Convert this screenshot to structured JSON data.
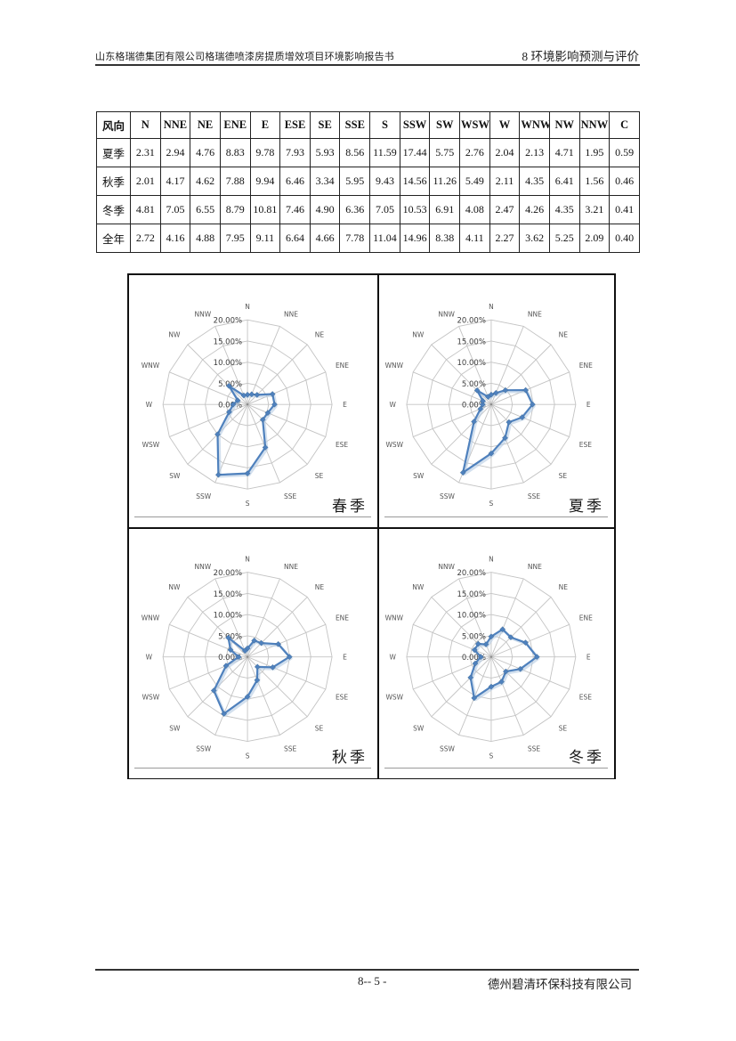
{
  "header": {
    "left_title": "山东格瑞德集团有限公司格瑞德喷漆房提质增效项目环境影响报告书",
    "right_section": "8 环境影响预测与评价"
  },
  "footer": {
    "page_number": "8-- 5 -",
    "company": "德州碧清环保科技有限公司"
  },
  "table": {
    "header": [
      "风向",
      "N",
      "NNE",
      "NE",
      "ENE",
      "E",
      "ESE",
      "SE",
      "SSE",
      "S",
      "SSW",
      "SW",
      "WSW",
      "W",
      "WNW",
      "NW",
      "NNW",
      "C"
    ],
    "rows": [
      {
        "label": "夏季",
        "values": [
          "2.31",
          "2.94",
          "4.76",
          "8.83",
          "9.78",
          "7.93",
          "5.93",
          "8.56",
          "11.59",
          "17.44",
          "5.75",
          "2.76",
          "2.04",
          "2.13",
          "4.71",
          "1.95",
          "0.59"
        ]
      },
      {
        "label": "秋季",
        "values": [
          "2.01",
          "4.17",
          "4.62",
          "7.88",
          "9.94",
          "6.46",
          "3.34",
          "5.95",
          "9.43",
          "14.56",
          "11.26",
          "5.49",
          "2.11",
          "4.35",
          "6.41",
          "1.56",
          "0.46"
        ]
      },
      {
        "label": "冬季",
        "values": [
          "4.81",
          "7.05",
          "6.55",
          "8.79",
          "10.81",
          "7.46",
          "4.90",
          "6.36",
          "7.05",
          "10.53",
          "6.91",
          "4.08",
          "2.47",
          "4.26",
          "4.35",
          "3.21",
          "0.41"
        ]
      },
      {
        "label": "全年",
        "values": [
          "2.72",
          "4.16",
          "4.88",
          "7.95",
          "9.11",
          "6.64",
          "4.66",
          "7.78",
          "11.04",
          "14.96",
          "8.38",
          "4.11",
          "2.27",
          "3.62",
          "5.25",
          "2.09",
          "0.40"
        ]
      }
    ]
  },
  "chart_style": {
    "series_color": "#4F81BD",
    "series_shadow_color": "#b5cbe2",
    "grid_color": "#c3c3c3",
    "tick_label_color": "#3d3d3d",
    "direction_label_color": "#555555"
  },
  "chart_data": [
    {
      "type": "radar",
      "title": "春季",
      "unit": "%",
      "categories": [
        "N",
        "NNE",
        "NE",
        "ENE",
        "E",
        "ESE",
        "SE",
        "SSE",
        "S",
        "SSW",
        "SW",
        "WSW",
        "W",
        "WNW",
        "NW",
        "NNW"
      ],
      "values": [
        2.3,
        2.6,
        3.2,
        6.4,
        6.4,
        5.2,
        5.1,
        11.0,
        16.3,
        18.0,
        10.0,
        4.7,
        3.4,
        2.5,
        6.2,
        2.3
      ],
      "rmax": 20,
      "tick_labels": [
        "0.00%",
        "5.00%",
        "10.00%",
        "15.00%",
        "20.00%"
      ],
      "grid": "spiderweb",
      "legend": "none"
    },
    {
      "type": "radar",
      "title": "夏季",
      "unit": "%",
      "categories": [
        "N",
        "NNE",
        "NE",
        "ENE",
        "E",
        "ESE",
        "SE",
        "SSE",
        "S",
        "SSW",
        "SW",
        "WSW",
        "W",
        "WNW",
        "NW",
        "NNW"
      ],
      "values": [
        2.31,
        2.94,
        4.76,
        8.83,
        9.78,
        7.93,
        5.93,
        8.56,
        11.59,
        17.44,
        5.75,
        2.76,
        2.04,
        2.13,
        4.71,
        1.95
      ],
      "rmax": 20,
      "tick_labels": [
        "0.00%",
        "5.00%",
        "10.00%",
        "15.00%",
        "20.00%"
      ],
      "grid": "spiderweb",
      "legend": "none"
    },
    {
      "type": "radar",
      "title": "秋季",
      "unit": "%",
      "categories": [
        "N",
        "NNE",
        "NE",
        "ENE",
        "E",
        "ESE",
        "SE",
        "SSE",
        "S",
        "SSW",
        "SW",
        "WSW",
        "W",
        "WNW",
        "NW",
        "NNW"
      ],
      "values": [
        2.01,
        4.17,
        4.62,
        7.88,
        9.94,
        6.46,
        3.34,
        5.95,
        9.43,
        14.56,
        11.26,
        5.49,
        2.11,
        4.35,
        6.41,
        1.56
      ],
      "rmax": 20,
      "tick_labels": [
        "0.00%",
        "5.00%",
        "10.00%",
        "15.00%",
        "20.00%"
      ],
      "grid": "spiderweb",
      "legend": "none"
    },
    {
      "type": "radar",
      "title": "冬季",
      "unit": "%",
      "categories": [
        "N",
        "NNE",
        "NE",
        "ENE",
        "E",
        "ESE",
        "SE",
        "SSE",
        "S",
        "SSW",
        "SW",
        "WSW",
        "W",
        "WNW",
        "NW",
        "NNW"
      ],
      "values": [
        4.81,
        7.05,
        6.55,
        8.79,
        10.81,
        7.46,
        4.9,
        6.36,
        7.05,
        10.53,
        6.91,
        4.08,
        2.47,
        4.26,
        4.35,
        3.21
      ],
      "rmax": 20,
      "tick_labels": [
        "0.00%",
        "5.00%",
        "10.00%",
        "15.00%",
        "20.00%"
      ],
      "grid": "spiderweb",
      "legend": "none"
    }
  ]
}
